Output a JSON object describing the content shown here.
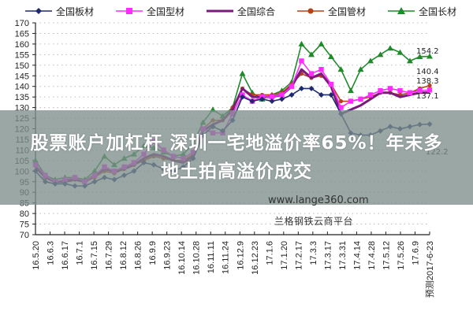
{
  "legend": {
    "items": [
      {
        "label": "全国板材",
        "color": "#1f2a6e",
        "marker": "diamond"
      },
      {
        "label": "全国型材",
        "color": "#ff2bff",
        "marker": "square"
      },
      {
        "label": "全国综合",
        "color": "#7a1a7a",
        "marker": "none"
      },
      {
        "label": "全国管材",
        "color": "#b5401a",
        "marker": "circle"
      },
      {
        "label": "全国长材",
        "color": "#1f8a2a",
        "marker": "triangle"
      }
    ]
  },
  "banner": {
    "line1": "股票账户加杠杆 深圳一宅地溢价率65%！年末多",
    "line2": "地土拍高溢价成交"
  },
  "watermark": "www.lange360.com",
  "source": "兰格钢铁云商平台",
  "end_labels": {
    "long": "154.2",
    "pipe": "140.4",
    "section": "138.3",
    "composite": "137.1",
    "plate": "122.2"
  },
  "chart_data": {
    "type": "line",
    "title": "",
    "xlabel": "",
    "ylabel": "",
    "ylim": [
      70,
      170
    ],
    "yticks": [
      70,
      75,
      80,
      85,
      90,
      95,
      100,
      105,
      110,
      115,
      120,
      125,
      130,
      135,
      140,
      145,
      150,
      155,
      160,
      165,
      170
    ],
    "grid": "horizontal dotted",
    "legend_position": "top",
    "x_tick_labels": [
      "16.5.20",
      "16.6.3",
      "16.6.17",
      "16.7.1",
      "16.7.15",
      "16.7.29",
      "16.8.12",
      "16.8.26",
      "16.9.9",
      "16.9.23",
      "16.10.14",
      "16.10.28",
      "16.11.11",
      "16.11.24",
      "16.12.9",
      "16.12.23",
      "17.1.6",
      "17.1.20",
      "17.2.17",
      "17.3.3",
      "17.3.17",
      "17.3.31",
      "17.4.14",
      "17.4.28",
      "17.5.12",
      "17.5.26",
      "17.6.9",
      "预测2017-6-23"
    ],
    "series": [
      {
        "name": "全国长材",
        "color": "#1f8a2a",
        "marker": "triangle",
        "values": [
          105,
          98,
          96,
          97,
          97,
          96,
          100,
          107,
          103,
          106,
          108,
          112,
          111,
          109,
          107,
          108,
          113,
          123,
          129,
          126,
          130,
          146,
          137,
          134,
          136,
          138,
          142,
          160,
          155,
          160,
          154,
          148,
          138,
          148,
          152,
          155,
          158,
          156,
          152,
          154,
          154.2
        ]
      },
      {
        "name": "全国型材",
        "color": "#ff2bff",
        "marker": "square",
        "values": [
          103,
          98,
          95,
          96,
          97,
          95,
          98,
          102,
          100,
          102,
          104,
          108,
          114,
          110,
          107,
          106,
          109,
          120,
          118,
          118,
          127,
          136,
          133,
          135,
          135,
          136,
          140,
          152,
          146,
          148,
          141,
          130,
          133,
          134,
          136,
          138,
          139,
          138,
          137,
          138,
          138.3
        ]
      },
      {
        "name": "全国综合",
        "color": "#7a1a7a",
        "marker": "none",
        "values": [
          102,
          97,
          95,
          95,
          96,
          95,
          98,
          101,
          100,
          101,
          103,
          106,
          108,
          107,
          105,
          104,
          107,
          119,
          122,
          124,
          129,
          139,
          135,
          135,
          135,
          136,
          140,
          148,
          144,
          146,
          140,
          127,
          129,
          131,
          134,
          137,
          137,
          135,
          136,
          137,
          137.1
        ]
      },
      {
        "name": "全国管材",
        "color": "#b5401a",
        "marker": "circle",
        "values": [
          103,
          97,
          95,
          96,
          96,
          95,
          97,
          100,
          99,
          101,
          103,
          105,
          107,
          106,
          105,
          105,
          108,
          120,
          124,
          124,
          130,
          139,
          136,
          136,
          136,
          137,
          141,
          146,
          144,
          145,
          141,
          133,
          133,
          134,
          135,
          137,
          137,
          136,
          137,
          139,
          140.4
        ]
      },
      {
        "name": "全国板材",
        "color": "#1f2a6e",
        "marker": "diamond",
        "values": [
          100,
          95,
          94,
          94,
          93,
          93,
          95,
          97,
          96,
          98,
          100,
          104,
          103,
          101,
          100,
          102,
          106,
          117,
          121,
          119,
          124,
          135,
          133,
          134,
          133,
          134,
          136,
          139,
          139,
          136,
          136,
          127,
          118,
          117,
          117,
          119,
          121,
          120,
          121,
          122,
          122.2
        ]
      }
    ]
  }
}
